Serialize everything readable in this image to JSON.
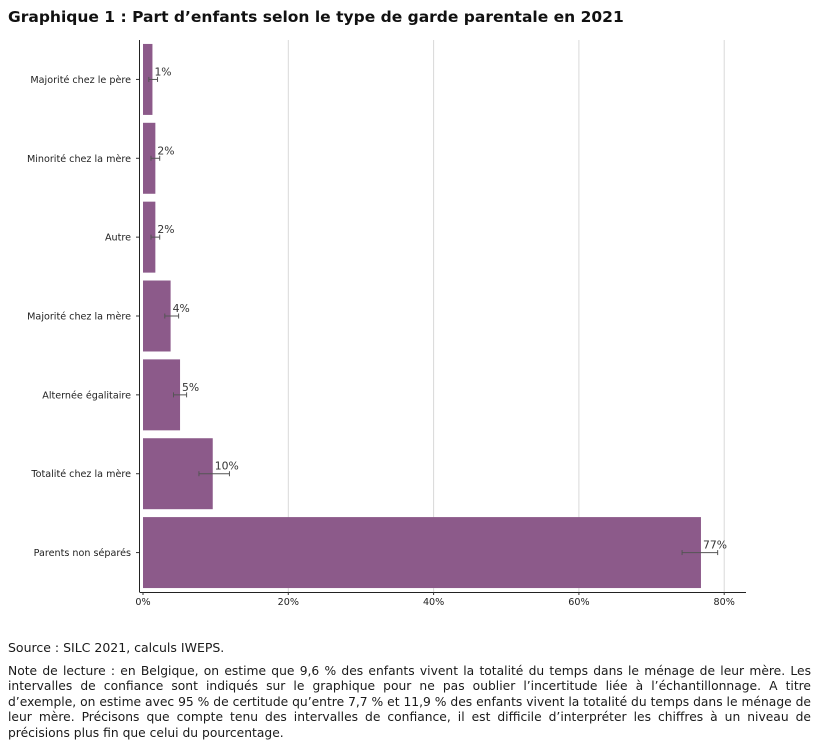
{
  "title": "Graphique 1 : Part d’enfants selon le type de garde parentale en 2021",
  "source": "Source : SILC 2021, calculs IWEPS.",
  "note": "Note de lecture : en Belgique, on estime que 9,6 % des enfants vivent la totalité du temps dans le ménage de leur mère. Les intervalles de confiance sont indiqués sur le graphique pour ne pas oublier l’incertitude liée à l’échantillonnage. A titre d’exemple, on estime avec 95 % de certitude qu’entre 7,7 % et 11,9 % des enfants vivent la totalité du temps dans le ménage de leur mère. Précisons que compte tenu des intervalles de confiance, il est difficile d’interpréter les chiffres à un niveau de précisions plus fin que celui du pourcentage.",
  "chart_data": {
    "type": "bar",
    "orientation": "horizontal",
    "categories": [
      "Majorité chez le père",
      "Minorité chez la mère",
      "Autre",
      "Majorité chez la mère",
      "Alternée égalitaire",
      "Totalité chez la mère",
      "Parents non séparés"
    ],
    "values": [
      1.3,
      1.7,
      1.7,
      3.8,
      5.1,
      9.6,
      76.8
    ],
    "ci_low": [
      0.8,
      1.1,
      1.1,
      3.0,
      4.2,
      7.7,
      74.2
    ],
    "ci_high": [
      2.0,
      2.3,
      2.3,
      4.9,
      6.0,
      11.9,
      79.1
    ],
    "data_labels": [
      "1%",
      "2%",
      "2%",
      "4%",
      "5%",
      "10%",
      "77%"
    ],
    "xlim": [
      0,
      83
    ],
    "xticks": [
      0,
      20,
      40,
      60,
      80
    ],
    "xtick_labels": [
      "0%",
      "20%",
      "40%",
      "60%",
      "80%"
    ],
    "xlabel": "",
    "ylabel": "",
    "grid": true,
    "bar_color": "#8c5a8a",
    "grid_color": "#d9d9d9"
  }
}
